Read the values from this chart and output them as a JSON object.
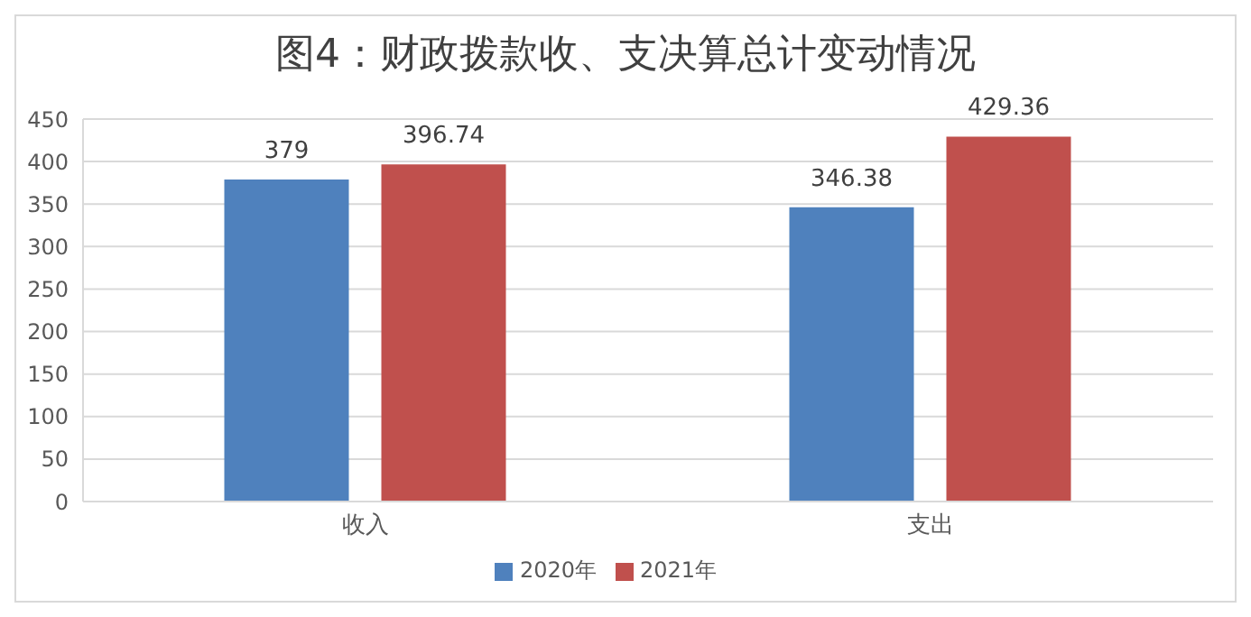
{
  "chart_data": {
    "type": "bar",
    "title": "图4：财政拨款收、支决算总计变动情况",
    "categories": [
      "收入",
      "支出"
    ],
    "series": [
      {
        "name": "2020年",
        "color": "#4f81bd",
        "values": [
          379,
          346.38
        ]
      },
      {
        "name": "2021年",
        "color": "#c0504d",
        "values": [
          396.74,
          429.36
        ]
      }
    ],
    "ylim": [
      0,
      450
    ],
    "yticks": [
      0,
      50,
      100,
      150,
      200,
      250,
      300,
      350,
      400,
      450
    ],
    "grid": "y",
    "legend": "bottom",
    "data_labels": true
  }
}
